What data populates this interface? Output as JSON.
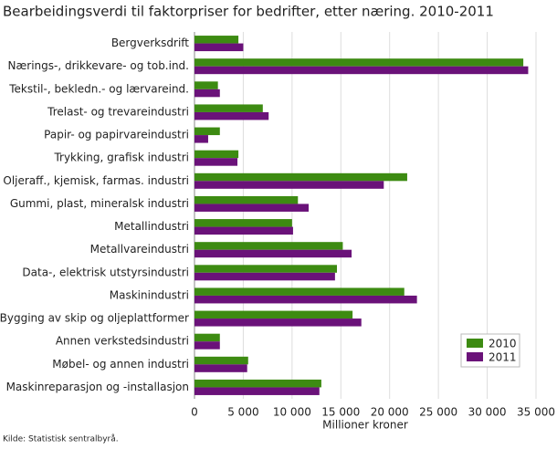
{
  "chart_data": {
    "type": "barh",
    "title": "Bearbeidingsverdi til faktorpriser for bedrifter, etter næring. 2010-2011",
    "x_label": "Millioner kroner",
    "source": "Kilde: Statistisk sentralbyrå.",
    "categories": [
      "Bergverksdrift",
      "Nærings-, drikkevare- og tob.ind.",
      "Tekstil-, bekledn.- og lærvareind.",
      "Trelast- og trevareindustri",
      "Papir- og papirvareindustri",
      "Trykking, grafisk industri",
      "Oljeraff., kjemisk, farmas. industri",
      "Gummi, plast, mineralsk industri",
      "Metallindustri",
      "Metallvareindustri",
      "Data-, elektrisk utstyrsindustri",
      "Maskinindustri",
      "Bygging av skip og oljeplattformer",
      "Annen verkstedsindustri",
      "Møbel- og annen industri",
      "Maskinreparasjon og -installasjon"
    ],
    "series": [
      {
        "name": "2010",
        "color": "#3d8b12",
        "values": [
          4500,
          33700,
          2400,
          7000,
          2600,
          4500,
          21800,
          10600,
          10000,
          15200,
          14600,
          21500,
          16200,
          2600,
          5500,
          13000
        ]
      },
      {
        "name": "2011",
        "color": "#6a1279",
        "values": [
          5000,
          34200,
          2600,
          7600,
          1400,
          4400,
          19400,
          11700,
          10100,
          16100,
          14400,
          22800,
          17100,
          2600,
          5400,
          12800
        ]
      }
    ],
    "xlim": [
      0,
      35000
    ],
    "xticks": [
      0,
      {
        "value": 5000,
        "label": "5 000"
      },
      {
        "value": 10000,
        "label": "10 000"
      },
      {
        "value": 15000,
        "label": "15 000"
      },
      {
        "value": 20000,
        "label": "20 000"
      },
      {
        "value": 25000,
        "label": "25 000"
      },
      {
        "value": 30000,
        "label": "30 000"
      },
      {
        "value": 35000,
        "label": "35 000"
      }
    ],
    "grid": true,
    "legend": "lower right"
  }
}
